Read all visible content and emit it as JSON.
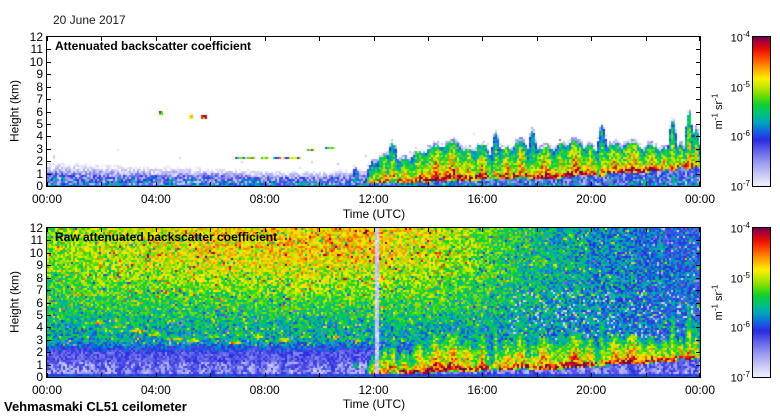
{
  "page": {
    "date_title": "20 June 2017",
    "footer": "Vehmasmaki CL51 ceilometer",
    "background": "#ffffff",
    "axis_color": "#000000"
  },
  "palette": {
    "stops": [
      [
        0.0,
        "#ffffff"
      ],
      [
        0.03,
        "#f2f2fc"
      ],
      [
        0.1,
        "#c9c9f5"
      ],
      [
        0.18,
        "#9a9af0"
      ],
      [
        0.26,
        "#5f5fe8"
      ],
      [
        0.33,
        "#2a2ae0"
      ],
      [
        0.38,
        "#1560e0"
      ],
      [
        0.44,
        "#00a0c0"
      ],
      [
        0.5,
        "#00c080"
      ],
      [
        0.56,
        "#10d030"
      ],
      [
        0.62,
        "#70dd00"
      ],
      [
        0.68,
        "#c8e800"
      ],
      [
        0.73,
        "#ffee00"
      ],
      [
        0.8,
        "#ffa000"
      ],
      [
        0.86,
        "#ff5000"
      ],
      [
        0.92,
        "#e81000"
      ],
      [
        0.97,
        "#b00030"
      ],
      [
        1.0,
        "#700050"
      ]
    ],
    "white_cutoff": 0.045
  },
  "chart_data": [
    {
      "type": "heatmap",
      "title": "Attenuated backscatter coefficient",
      "xlabel": "Time (UTC)",
      "ylabel": "Height (km)",
      "x_range_hours": [
        0,
        24
      ],
      "y_range_km": [
        0,
        12
      ],
      "x_tick_labels": [
        "00:00",
        "04:00",
        "08:00",
        "12:00",
        "16:00",
        "20:00",
        "00:00"
      ],
      "x_label_hours": [
        0,
        4,
        8,
        12,
        16,
        20,
        24
      ],
      "x_minor_step_hours": 2,
      "y_tick_km": [
        0,
        1,
        2,
        3,
        4,
        5,
        6,
        7,
        8,
        9,
        10,
        11,
        12
      ],
      "colorbar": {
        "tick_labels": [
          {
            "base": "10",
            "exp": "-4"
          },
          {
            "base": "10",
            "exp": "-5"
          },
          {
            "base": "10",
            "exp": "-6"
          },
          {
            "base": "10",
            "exp": "-7"
          }
        ],
        "unit_parts": [
          "m",
          "-1",
          " sr",
          "-1"
        ],
        "scale": "log"
      },
      "render": {
        "kind": "processed",
        "seed": 1337,
        "boundary_layer_top_km": [
          [
            0,
            1.35
          ],
          [
            2,
            1.2
          ],
          [
            4,
            1.1
          ],
          [
            6,
            1.05
          ],
          [
            8,
            0.9
          ],
          [
            10,
            0.85
          ],
          [
            12,
            1.0
          ],
          [
            13,
            1.6
          ],
          [
            16,
            1.8
          ],
          [
            20,
            1.7
          ],
          [
            24,
            1.9
          ]
        ],
        "clouds": [
          [
            11.35,
            0.7,
            1.4,
            0.55,
            0.08
          ],
          [
            12.0,
            0.2,
            1.9,
            0.8,
            0.12
          ],
          [
            12.4,
            0.3,
            2.5,
            0.85,
            0.18
          ],
          [
            12.7,
            0.5,
            3.4,
            0.8,
            0.12
          ],
          [
            13.15,
            0.3,
            2.2,
            0.85,
            0.22
          ],
          [
            13.7,
            0.3,
            2.8,
            0.9,
            0.25
          ],
          [
            14.3,
            0.4,
            3.3,
            0.95,
            0.3
          ],
          [
            14.9,
            0.5,
            3.6,
            0.95,
            0.3
          ],
          [
            15.45,
            0.4,
            3.0,
            0.9,
            0.25
          ],
          [
            16.0,
            0.6,
            3.4,
            0.9,
            0.2
          ],
          [
            16.5,
            0.8,
            4.2,
            0.75,
            0.1
          ],
          [
            16.9,
            0.6,
            3.1,
            0.9,
            0.22
          ],
          [
            17.4,
            0.7,
            3.6,
            0.9,
            0.22
          ],
          [
            17.85,
            0.6,
            4.4,
            0.75,
            0.1
          ],
          [
            18.3,
            0.6,
            3.2,
            0.95,
            0.3
          ],
          [
            18.9,
            0.7,
            3.4,
            0.85,
            0.2
          ],
          [
            19.4,
            0.8,
            3.6,
            0.95,
            0.3
          ],
          [
            19.95,
            0.9,
            3.3,
            0.9,
            0.2
          ],
          [
            20.4,
            0.8,
            4.9,
            0.75,
            0.1
          ],
          [
            20.85,
            1.0,
            3.4,
            0.9,
            0.3
          ],
          [
            21.5,
            1.0,
            3.5,
            0.95,
            0.35
          ],
          [
            22.2,
            1.2,
            3.3,
            0.9,
            0.25
          ],
          [
            22.7,
            1.3,
            3.1,
            0.85,
            0.2
          ],
          [
            23.0,
            1.2,
            5.2,
            0.8,
            0.1
          ],
          [
            23.3,
            1.5,
            3.3,
            0.85,
            0.15
          ],
          [
            23.6,
            1.4,
            5.9,
            0.85,
            0.09
          ],
          [
            23.85,
            1.5,
            4.6,
            0.8,
            0.1
          ]
        ],
        "specks": [
          [
            4.2,
            5.9
          ],
          [
            5.3,
            5.5
          ],
          [
            5.75,
            5.5
          ]
        ],
        "streaks": [
          [
            7.1,
            2.2
          ],
          [
            7.5,
            2.25
          ],
          [
            8.0,
            2.2
          ],
          [
            8.45,
            2.3
          ],
          [
            8.85,
            2.25
          ],
          [
            9.15,
            2.2
          ],
          [
            9.7,
            2.9
          ],
          [
            10.4,
            3.0
          ]
        ]
      }
    },
    {
      "type": "heatmap",
      "title": "Raw attenuated backscatter coefficient",
      "xlabel": "Time (UTC)",
      "ylabel": "Height (km)",
      "x_range_hours": [
        0,
        24
      ],
      "y_range_km": [
        0,
        12
      ],
      "x_tick_labels": [
        "00:00",
        "04:00",
        "08:00",
        "12:00",
        "16:00",
        "20:00",
        "00:00"
      ],
      "x_label_hours": [
        0,
        4,
        8,
        12,
        16,
        20,
        24
      ],
      "x_minor_step_hours": 2,
      "y_tick_km": [
        0,
        1,
        2,
        3,
        4,
        5,
        6,
        7,
        8,
        9,
        10,
        11,
        12
      ],
      "colorbar": {
        "tick_labels": [
          {
            "base": "10",
            "exp": "-4"
          },
          {
            "base": "10",
            "exp": "-5"
          },
          {
            "base": "10",
            "exp": "-6"
          },
          {
            "base": "10",
            "exp": "-7"
          }
        ],
        "unit_parts": [
          "m",
          "-1",
          " sr",
          "-1"
        ],
        "scale": "log"
      },
      "render": {
        "kind": "raw",
        "seed": 777,
        "red_boost_by_hour": [
          [
            0,
            0.05
          ],
          [
            3,
            0.1
          ],
          [
            6,
            0.15
          ],
          [
            9,
            0.17
          ],
          [
            12,
            0.17
          ],
          [
            14,
            0.12
          ],
          [
            15,
            0.06
          ],
          [
            17,
            -0.02
          ],
          [
            20,
            -0.09
          ],
          [
            24,
            -0.12
          ]
        ],
        "gap_stripe_hours": [
          12.05,
          12.22
        ],
        "clouds": [
          [
            1.9,
            4.3,
            4.75,
            0.78,
            0.3
          ],
          [
            2.7,
            3.95,
            4.4,
            0.78,
            0.3
          ],
          [
            3.3,
            3.65,
            4.1,
            0.78,
            0.3
          ],
          [
            4.0,
            3.35,
            3.8,
            0.78,
            0.3
          ],
          [
            4.7,
            3.05,
            3.5,
            0.78,
            0.3
          ],
          [
            5.4,
            2.8,
            3.25,
            0.78,
            0.3
          ],
          [
            6.1,
            3.1,
            3.55,
            0.78,
            0.3
          ],
          [
            6.9,
            2.7,
            3.15,
            0.78,
            0.3
          ],
          [
            7.8,
            3.1,
            3.55,
            0.78,
            0.3
          ],
          [
            8.7,
            2.85,
            3.3,
            0.78,
            0.3
          ],
          [
            9.5,
            3.1,
            3.55,
            0.78,
            0.3
          ],
          [
            10.5,
            3.2,
            3.65,
            0.72,
            0.3
          ],
          [
            11.2,
            2.9,
            3.35,
            0.7,
            0.3
          ],
          [
            11.35,
            0.7,
            1.4,
            0.55,
            0.08
          ],
          [
            12.0,
            0.2,
            1.9,
            0.8,
            0.12
          ],
          [
            12.4,
            0.3,
            2.5,
            0.85,
            0.18
          ],
          [
            12.7,
            0.5,
            3.4,
            0.8,
            0.12
          ],
          [
            13.15,
            0.3,
            2.2,
            0.85,
            0.22
          ],
          [
            13.7,
            0.3,
            2.8,
            0.9,
            0.25
          ],
          [
            14.3,
            0.4,
            3.3,
            0.95,
            0.3
          ],
          [
            14.9,
            0.5,
            3.6,
            0.95,
            0.3
          ],
          [
            15.45,
            0.4,
            3.0,
            0.9,
            0.25
          ],
          [
            16.0,
            0.6,
            3.4,
            0.9,
            0.2
          ],
          [
            16.5,
            0.8,
            4.2,
            0.75,
            0.1
          ],
          [
            16.9,
            0.6,
            3.1,
            0.9,
            0.22
          ],
          [
            17.4,
            0.7,
            3.6,
            0.9,
            0.22
          ],
          [
            17.85,
            0.6,
            4.4,
            0.75,
            0.1
          ],
          [
            18.3,
            0.6,
            3.2,
            0.95,
            0.3
          ],
          [
            18.9,
            0.7,
            3.4,
            0.85,
            0.2
          ],
          [
            19.4,
            0.8,
            3.6,
            0.95,
            0.3
          ],
          [
            19.95,
            0.9,
            3.3,
            0.9,
            0.2
          ],
          [
            20.4,
            0.8,
            4.9,
            0.75,
            0.1
          ],
          [
            20.85,
            1.0,
            3.4,
            0.9,
            0.3
          ],
          [
            21.5,
            1.0,
            3.5,
            0.95,
            0.35
          ],
          [
            22.2,
            1.2,
            3.3,
            0.9,
            0.25
          ],
          [
            22.7,
            1.3,
            3.1,
            0.85,
            0.2
          ],
          [
            23.0,
            1.2,
            5.2,
            0.8,
            0.1
          ],
          [
            23.3,
            1.5,
            3.3,
            0.85,
            0.15
          ],
          [
            23.6,
            1.4,
            5.9,
            0.85,
            0.09
          ],
          [
            23.85,
            1.5,
            4.6,
            0.8,
            0.1
          ]
        ],
        "specks": [],
        "streaks": []
      }
    }
  ]
}
